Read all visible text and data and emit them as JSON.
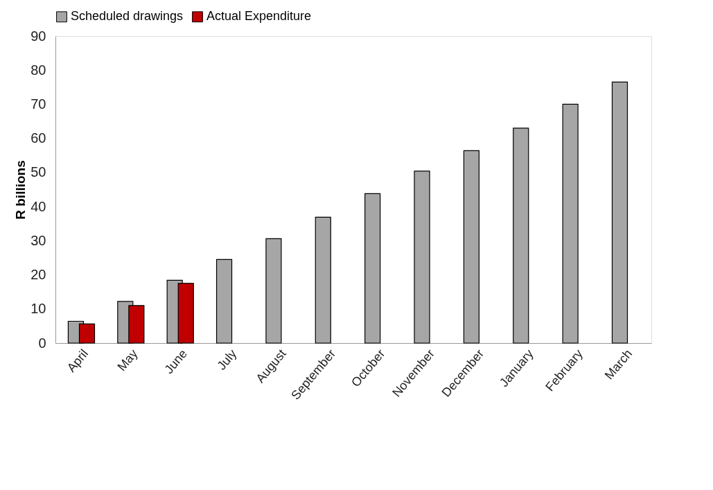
{
  "chart_data": {
    "type": "bar",
    "ylabel": "R billions",
    "categories": [
      "April",
      "May",
      "June",
      "July",
      "August",
      "September",
      "October",
      "November",
      "December",
      "January",
      "February",
      "March"
    ],
    "series": [
      {
        "name": "Scheduled drawings",
        "color": "#a6a6a6",
        "values": [
          6.4,
          12.2,
          18.4,
          24.5,
          30.6,
          36.9,
          43.8,
          50.4,
          56.4,
          63.0,
          70.0,
          76.5
        ]
      },
      {
        "name": "Actual Expenditure",
        "color": "#c00000",
        "values": [
          5.6,
          11.0,
          17.5,
          null,
          null,
          null,
          null,
          null,
          null,
          null,
          null,
          null
        ]
      }
    ],
    "ylim": [
      0,
      90
    ],
    "yticks": [
      0,
      10,
      20,
      30,
      40,
      50,
      60,
      70,
      80,
      90
    ],
    "grid": false,
    "legend": "top"
  }
}
